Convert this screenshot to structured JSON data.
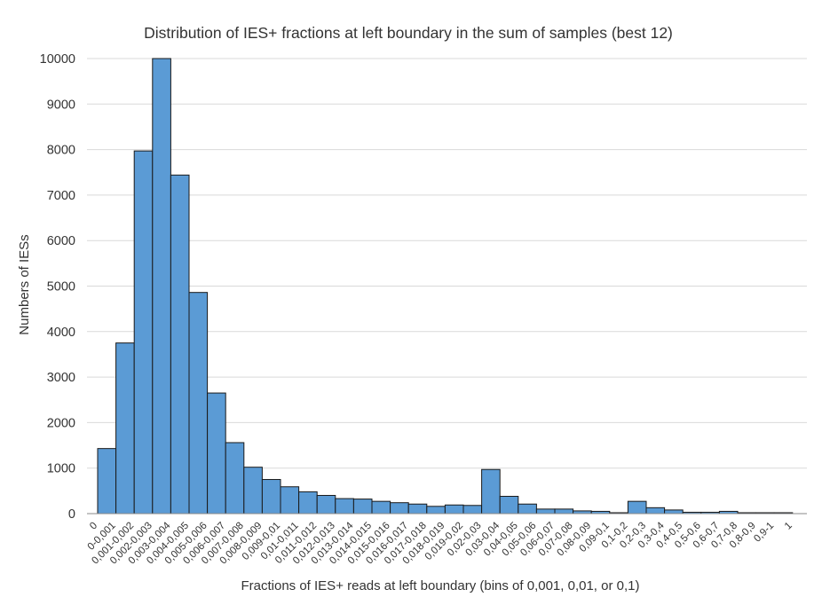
{
  "chart_data": {
    "type": "bar",
    "title": "Distribution of IES+ fractions at left boundary in the sum of samples (best 12)",
    "xlabel": "Fractions of IES+ reads at left boundary (bins of 0,001, 0,01, or 0,1)",
    "ylabel": "Numbers of IESs",
    "ylim": [
      0,
      10000
    ],
    "yticks": [
      0,
      1000,
      2000,
      3000,
      4000,
      5000,
      6000,
      7000,
      8000,
      9000,
      10000
    ],
    "grid": true,
    "legend": "none",
    "categories": [
      "0",
      "0-0,001",
      "0,001-0,002",
      "0,002-0,003",
      "0,003-0,004",
      "0,004-0,005",
      "0,005-0,006",
      "0,006-0,007",
      "0,007-0,008",
      "0,008-0,009",
      "0,009-0,01",
      "0,01-0,011",
      "0,011-0,012",
      "0,012-0,013",
      "0,013-0,014",
      "0,014-0,015",
      "0,015-0,016",
      "0,016-0,017",
      "0,017-0,018",
      "0,018-0,019",
      "0,019-0,02",
      "0,02-0,03",
      "0,03-0,04",
      "0,04-0,05",
      "0,05-0,06",
      "0,06-0,07",
      "0,07-0,08",
      "0,08-0,09",
      "0,09-0,1",
      "0,1-0,2",
      "0,2-0,3",
      "0,3-0,4",
      "0,4-0,5",
      "0,5-0,6",
      "0,6-0,7",
      "0,7-0,8",
      "0,8-0,9",
      "0,9-1",
      "1"
    ],
    "values": [
      1430,
      3750,
      7970,
      10000,
      7440,
      4860,
      2650,
      1560,
      1020,
      750,
      590,
      480,
      400,
      330,
      320,
      270,
      240,
      210,
      160,
      190,
      180,
      970,
      380,
      210,
      100,
      100,
      60,
      50,
      20,
      270,
      130,
      80,
      30,
      30,
      50,
      20,
      20,
      20,
      0
    ],
    "colors": {
      "bar_fill": "#5b9bd5",
      "bar_stroke": "#1a1a1a",
      "grid": "#d9d9d9",
      "axis": "#888888",
      "text": "#333333"
    }
  }
}
